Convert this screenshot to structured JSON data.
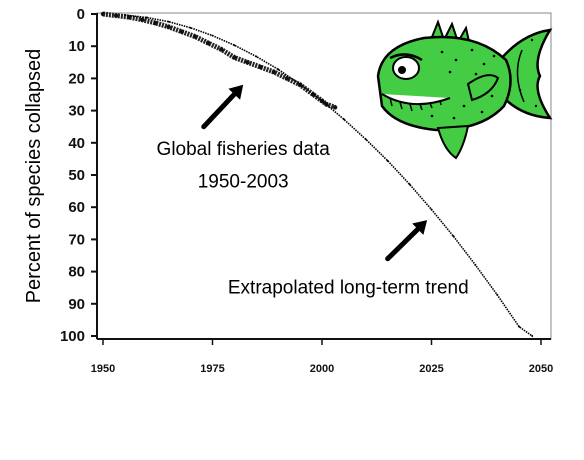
{
  "chart_data": {
    "type": "line",
    "title": "",
    "ylabel": "Percent of species collapsed",
    "xlabel": "",
    "xlim": [
      1950,
      2050
    ],
    "ylim": [
      0,
      100
    ],
    "y_inverted": true,
    "x_ticks": [
      "1950",
      "1975",
      "2000",
      "2025",
      "2050"
    ],
    "y_ticks": [
      "0",
      "10",
      "20",
      "30",
      "40",
      "50",
      "60",
      "70",
      "80",
      "90",
      "100"
    ],
    "grid": false,
    "series": [
      {
        "style": "thick-noisy",
        "x": [
          1950,
          1953,
          1956,
          1959,
          1962,
          1965,
          1968,
          1971,
          1974,
          1977,
          1980,
          1983,
          1986,
          1989,
          1992,
          1995,
          1998,
          2000,
          2001,
          2003
        ],
        "y": [
          0,
          0.5,
          1,
          1.8,
          2.8,
          4,
          5.5,
          7,
          9,
          11,
          13.5,
          15,
          16.5,
          18,
          20,
          22,
          25,
          27,
          28,
          29
        ]
      },
      {
        "style": "thin-dotted",
        "x": [
          1955,
          1960,
          1965,
          1970,
          1975,
          1980,
          1985,
          1990,
          1995,
          2000,
          2005,
          2010,
          2015,
          2020,
          2025,
          2030,
          2035,
          2040,
          2045,
          2048
        ],
        "y": [
          0.3,
          1.1,
          2.4,
          4.3,
          6.7,
          9.7,
          13.2,
          17.2,
          21.8,
          27,
          32.7,
          38.9,
          45.6,
          52.9,
          60.7,
          69,
          77.9,
          87.2,
          97.1,
          100
        ]
      }
    ],
    "annotations": [
      {
        "text": "Global fisheries data",
        "x": 1982,
        "y": 42
      },
      {
        "text": "1950-2003",
        "x": 1982,
        "y": 52
      },
      {
        "text": "Extrapolated long-term trend",
        "x": 2006,
        "y": 85
      }
    ],
    "arrows": [
      {
        "from_x": 1973,
        "from_y": 35,
        "to_x": 1982,
        "to_y": 22
      },
      {
        "from_x": 2015,
        "from_y": 76,
        "to_x": 2024,
        "to_y": 64
      }
    ]
  },
  "icons": {
    "fish": "cartoon-fish-icon"
  },
  "colors": {
    "fish_body": "#44cc44",
    "fish_outline": "#000000"
  }
}
